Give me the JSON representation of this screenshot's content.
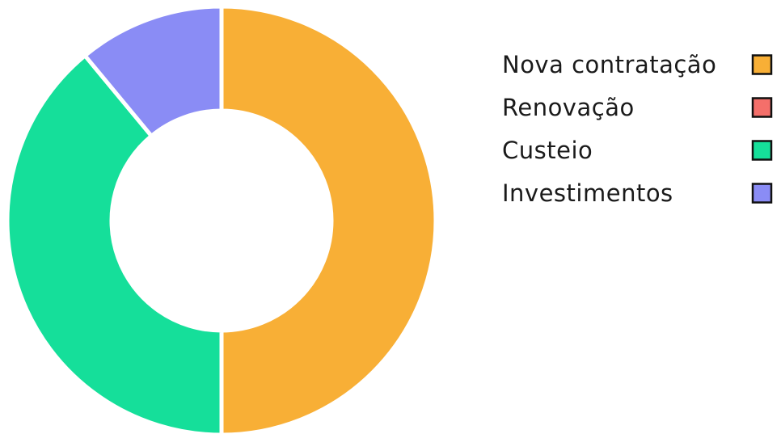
{
  "chart_data": {
    "type": "pie",
    "variant": "donut",
    "categories": [
      "Nova contratação",
      "Renovação",
      "Custeio",
      "Investimentos"
    ],
    "values": [
      50,
      0,
      39,
      11
    ],
    "colors": [
      "#F8AF36",
      "#F46F6A",
      "#15DF9A",
      "#8A8CF5"
    ],
    "legend": {
      "placement": "right",
      "entries": [
        {
          "label": "Nova contratação",
          "color": "#F8AF36"
        },
        {
          "label": "Renovação",
          "color": "#F46F6A"
        },
        {
          "label": "Custeio",
          "color": "#15DF9A"
        },
        {
          "label": "Investimentos",
          "color": "#8A8CF5"
        }
      ]
    },
    "title": ""
  }
}
